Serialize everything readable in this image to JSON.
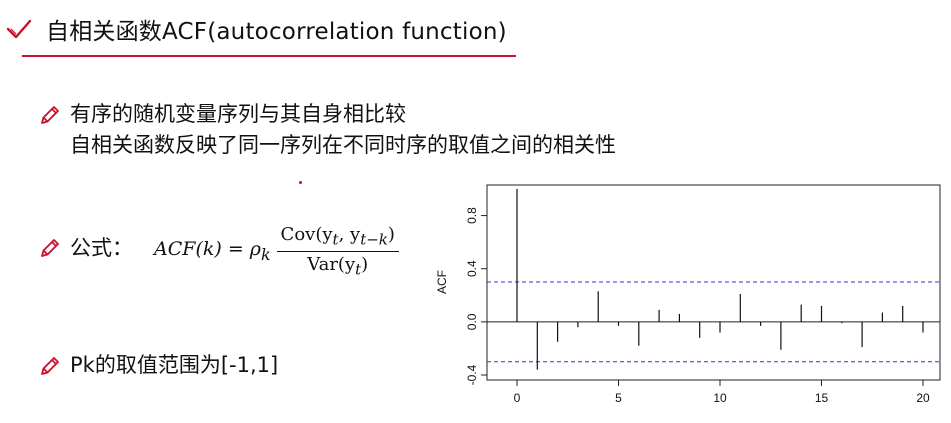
{
  "header": {
    "title": "自相关函数ACF(autocorrelation function)",
    "accent_color": "#c8102e",
    "icon": "check-icon"
  },
  "bullets": {
    "icon": "pencil-icon",
    "definition_line1": "有序的随机变量序列与其自身相比较",
    "definition_line2": "自相关函数反映了同一序列在不同时序的取值之间的相关性",
    "formula_label": "公式：",
    "formula_lhs": "ACF(k) = ρ",
    "formula_lhs_sub": "k",
    "formula_equals": "=",
    "formula_numerator": "Cov(y",
    "formula_num_sub1": "t",
    "formula_num_mid": ", y",
    "formula_num_sub2": "t−k",
    "formula_num_end": ")",
    "formula_denominator": "Var(y",
    "formula_den_sub": "t",
    "formula_den_end": ")",
    "range_text": "Pk的取值范围为[-1,1]"
  },
  "chart_data": {
    "type": "bar",
    "ylabel": "ACF",
    "xlim": [
      0,
      20
    ],
    "ylim": [
      -0.4,
      1.0
    ],
    "x_ticks": [
      "0",
      "5",
      "10",
      "15",
      "20"
    ],
    "y_ticks": [
      "-0.4",
      "0.0",
      "0.4",
      "0.8"
    ],
    "lags": [
      0,
      1,
      2,
      3,
      4,
      5,
      6,
      7,
      8,
      9,
      10,
      11,
      12,
      13,
      14,
      15,
      16,
      17,
      18,
      19,
      20
    ],
    "values": [
      1.0,
      -0.36,
      -0.15,
      -0.04,
      0.23,
      -0.03,
      -0.18,
      0.09,
      0.06,
      -0.12,
      -0.08,
      0.21,
      -0.03,
      -0.21,
      0.13,
      0.12,
      -0.01,
      -0.19,
      0.07,
      0.12,
      -0.08
    ],
    "confidence_bound": 0.3,
    "confidence_color": "#3333cc",
    "grid": false
  }
}
